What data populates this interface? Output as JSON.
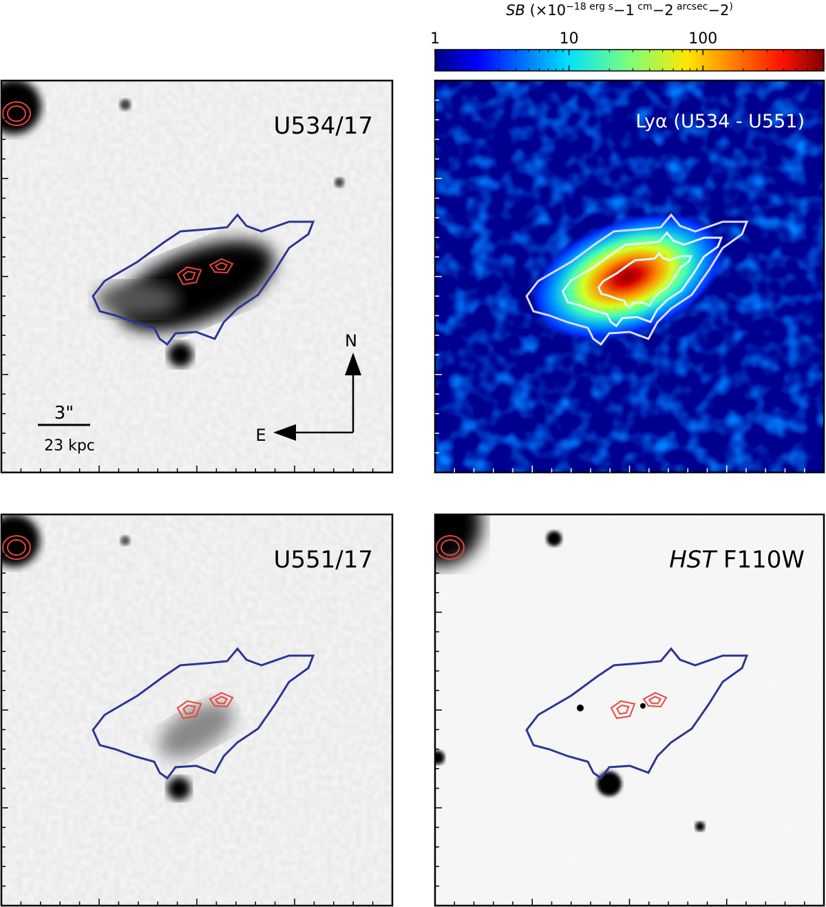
{
  "colorbar": {
    "label_parts": [
      "SB",
      " (×10",
      "−18",
      " erg s",
      "−1",
      " cm",
      "−2",
      " arcsec",
      "−2",
      ")"
    ],
    "scale": "log",
    "lim": [
      1,
      800
    ],
    "ticks": [
      1,
      10,
      100
    ],
    "colormap": "jet"
  },
  "panels": [
    {
      "label": "U534/17"
    },
    {
      "label": "Lyα (U534 - U551)"
    },
    {
      "label": "U551/17"
    },
    {
      "label_italic": "HST",
      "label": "F110W"
    }
  ],
  "scale_bar": {
    "angle": "3\"",
    "distance": "23 kpc"
  },
  "compass": {
    "north": "N",
    "east": "E"
  }
}
